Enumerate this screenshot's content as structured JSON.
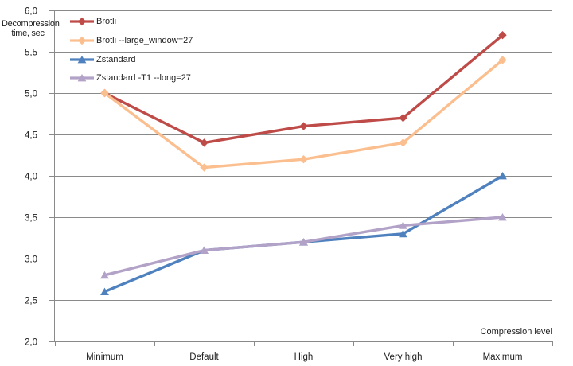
{
  "chart_data": {
    "type": "line",
    "title": "",
    "xlabel": "Compression level",
    "ylabel": "Decompression time, sec",
    "ylabel_lines": [
      "Decompression",
      "time, sec"
    ],
    "categories": [
      "Minimum",
      "Default",
      "High",
      "Very high",
      "Maximum"
    ],
    "series": [
      {
        "name": "Brotli",
        "color": "#BE4B48",
        "marker": "diamond",
        "values": [
          5.0,
          4.4,
          4.6,
          4.7,
          5.7
        ]
      },
      {
        "name": "Brotli --large_window=27",
        "color": "#FBBF8F",
        "marker": "diamond",
        "values": [
          5.0,
          4.1,
          4.2,
          4.4,
          5.4
        ]
      },
      {
        "name": "Zstandard",
        "color": "#4E81BD",
        "marker": "triangle",
        "values": [
          2.6,
          3.1,
          3.2,
          3.3,
          4.0
        ]
      },
      {
        "name": "Zstandard -T1 --long=27",
        "color": "#B2A2C7",
        "marker": "triangle",
        "values": [
          2.8,
          3.1,
          3.2,
          3.4,
          3.5
        ]
      }
    ],
    "ylim": [
      2.0,
      6.0
    ],
    "ytick_step": 0.5,
    "ytick_labels": [
      "6,0",
      "5,5",
      "5,0",
      "4,5",
      "4,0",
      "3,5",
      "3,0",
      "2,5",
      "2,0"
    ],
    "grid": true,
    "legend_position": "top-left-inside",
    "colors": {
      "grid": "#8A8A8A",
      "axis": "#8A8A8A",
      "text": "#202020",
      "background": "#FFFFFF"
    }
  }
}
